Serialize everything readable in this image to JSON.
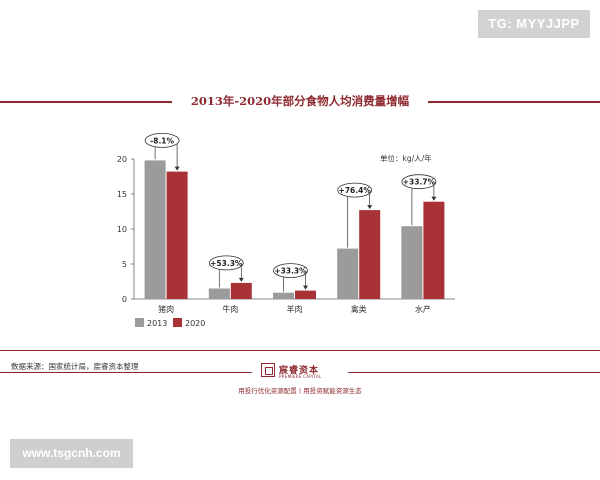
{
  "watermark_top": "TG: MYYJJPP",
  "watermark_bottom": "www.tsgcnh.com",
  "unit": "单位：kg/人/年",
  "source": "数据来源：国家统计局，宸睿资本整理",
  "logo": {
    "cn": "宸睿资本",
    "en": "PREMIERE CAPITAL"
  },
  "footer": "用投行优化资源配置丨用投资赋能资源生态",
  "colors": {
    "accent": "#8e2a30",
    "s2013": "#9b9b9b",
    "s2020": "#a93237"
  },
  "chart_data": {
    "type": "bar",
    "title": "2013年-2020年部分食物人均消费量增幅",
    "categories": [
      "猪肉",
      "牛肉",
      "羊肉",
      "禽类",
      "水产"
    ],
    "series": [
      {
        "name": "2013",
        "values": [
          19.8,
          1.5,
          0.9,
          7.2,
          10.4
        ]
      },
      {
        "name": "2020",
        "values": [
          18.2,
          2.3,
          1.2,
          12.7,
          13.9
        ]
      }
    ],
    "annotations": [
      "-8.1%",
      "+53.3%",
      "+33.3%",
      "+76.4%",
      "+33.7%"
    ],
    "ylim": [
      0,
      20
    ],
    "yticks": [
      0,
      5,
      10,
      15,
      20
    ],
    "legend": "bottom-left",
    "grid": false
  }
}
